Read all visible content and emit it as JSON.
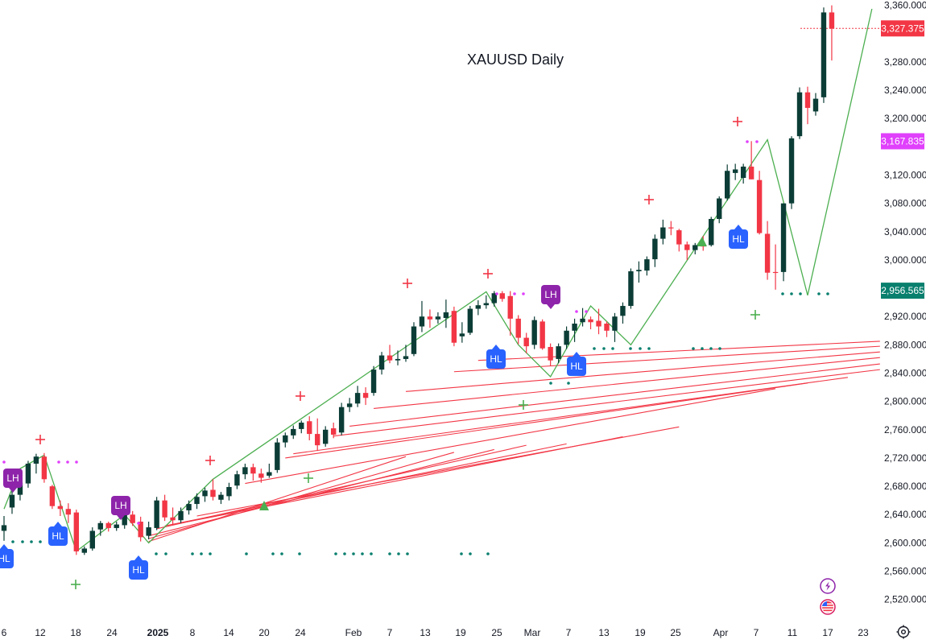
{
  "chart_data": {
    "type": "candlestick",
    "title": "XAUUSD Daily",
    "x_tick_labels": [
      "6",
      "12",
      "18",
      "24",
      "2025",
      "8",
      "14",
      "20",
      "24",
      "Feb",
      "7",
      "13",
      "19",
      "25",
      "Mar",
      "7",
      "13",
      "19",
      "25",
      "Apr",
      "7",
      "11",
      "17",
      "23"
    ],
    "y_tick_labels": [
      "3,360.000",
      "3,280.000",
      "3,240.000",
      "3,200.000",
      "3,120.000",
      "3,080.000",
      "3,040.000",
      "3,000.000",
      "2,920.000",
      "2,880.000",
      "2,840.000",
      "2,800.000",
      "2,760.000",
      "2,720.000",
      "2,680.000",
      "2,640.000",
      "2,600.000",
      "2,560.000",
      "2,520.000"
    ],
    "y_tick_values": [
      3360,
      3280,
      3240,
      3200,
      3120,
      3080,
      3040,
      3000,
      2920,
      2880,
      2840,
      2800,
      2760,
      2720,
      2680,
      2640,
      2600,
      2560,
      2520
    ],
    "ylim": [
      2498,
      3363
    ],
    "price_labels": [
      {
        "text": "3,327.375",
        "value": 3327.375,
        "color": "#f23645"
      },
      {
        "text": "3,167.835",
        "value": 3167.835,
        "color": "#e040fb"
      },
      {
        "text": "2,956.565",
        "value": 2956.565,
        "color": "#097f6e"
      }
    ],
    "candles": [
      {
        "o": 2617,
        "h": 2638,
        "l": 2603,
        "c": 2625
      },
      {
        "o": 2650,
        "h": 2675,
        "l": 2641,
        "c": 2668
      },
      {
        "o": 2668,
        "h": 2692,
        "l": 2660,
        "c": 2685
      },
      {
        "o": 2684,
        "h": 2716,
        "l": 2678,
        "c": 2712
      },
      {
        "o": 2712,
        "h": 2726,
        "l": 2698,
        "c": 2722
      },
      {
        "o": 2722,
        "h": 2727,
        "l": 2685,
        "c": 2690
      },
      {
        "o": 2680,
        "h": 2682,
        "l": 2648,
        "c": 2652
      },
      {
        "o": 2652,
        "h": 2660,
        "l": 2638,
        "c": 2648
      },
      {
        "o": 2648,
        "h": 2656,
        "l": 2628,
        "c": 2640
      },
      {
        "o": 2643,
        "h": 2647,
        "l": 2583,
        "c": 2588
      },
      {
        "o": 2586,
        "h": 2595,
        "l": 2583,
        "c": 2592
      },
      {
        "o": 2592,
        "h": 2622,
        "l": 2589,
        "c": 2617
      },
      {
        "o": 2619,
        "h": 2631,
        "l": 2610,
        "c": 2628
      },
      {
        "o": 2628,
        "h": 2630,
        "l": 2616,
        "c": 2621
      },
      {
        "o": 2621,
        "h": 2630,
        "l": 2617,
        "c": 2626
      },
      {
        "o": 2625,
        "h": 2645,
        "l": 2620,
        "c": 2640
      },
      {
        "o": 2640,
        "h": 2645,
        "l": 2624,
        "c": 2628
      },
      {
        "o": 2630,
        "h": 2637,
        "l": 2602,
        "c": 2608
      },
      {
        "o": 2610,
        "h": 2630,
        "l": 2605,
        "c": 2622
      },
      {
        "o": 2621,
        "h": 2665,
        "l": 2618,
        "c": 2660
      },
      {
        "o": 2660,
        "h": 2668,
        "l": 2631,
        "c": 2636
      },
      {
        "o": 2636,
        "h": 2650,
        "l": 2625,
        "c": 2632
      },
      {
        "o": 2632,
        "h": 2650,
        "l": 2628,
        "c": 2645
      },
      {
        "o": 2646,
        "h": 2660,
        "l": 2640,
        "c": 2655
      },
      {
        "o": 2655,
        "h": 2670,
        "l": 2648,
        "c": 2665
      },
      {
        "o": 2666,
        "h": 2678,
        "l": 2658,
        "c": 2674
      },
      {
        "o": 2675,
        "h": 2690,
        "l": 2660,
        "c": 2665
      },
      {
        "o": 2661,
        "h": 2672,
        "l": 2655,
        "c": 2668
      },
      {
        "o": 2666,
        "h": 2685,
        "l": 2660,
        "c": 2679
      },
      {
        "o": 2681,
        "h": 2702,
        "l": 2676,
        "c": 2697
      },
      {
        "o": 2697,
        "h": 2712,
        "l": 2690,
        "c": 2707
      },
      {
        "o": 2707,
        "h": 2712,
        "l": 2688,
        "c": 2698
      },
      {
        "o": 2698,
        "h": 2705,
        "l": 2685,
        "c": 2692
      },
      {
        "o": 2695,
        "h": 2712,
        "l": 2692,
        "c": 2700
      },
      {
        "o": 2703,
        "h": 2748,
        "l": 2699,
        "c": 2742
      },
      {
        "o": 2742,
        "h": 2756,
        "l": 2735,
        "c": 2752
      },
      {
        "o": 2752,
        "h": 2766,
        "l": 2747,
        "c": 2761
      },
      {
        "o": 2761,
        "h": 2773,
        "l": 2755,
        "c": 2770
      },
      {
        "o": 2772,
        "h": 2779,
        "l": 2745,
        "c": 2754
      },
      {
        "o": 2754,
        "h": 2776,
        "l": 2730,
        "c": 2738
      },
      {
        "o": 2740,
        "h": 2765,
        "l": 2736,
        "c": 2760
      },
      {
        "o": 2762,
        "h": 2770,
        "l": 2748,
        "c": 2753
      },
      {
        "o": 2756,
        "h": 2798,
        "l": 2752,
        "c": 2792
      },
      {
        "o": 2792,
        "h": 2805,
        "l": 2785,
        "c": 2797
      },
      {
        "o": 2797,
        "h": 2822,
        "l": 2792,
        "c": 2812
      },
      {
        "o": 2812,
        "h": 2820,
        "l": 2795,
        "c": 2805
      },
      {
        "o": 2812,
        "h": 2850,
        "l": 2808,
        "c": 2845
      },
      {
        "o": 2845,
        "h": 2870,
        "l": 2838,
        "c": 2865
      },
      {
        "o": 2865,
        "h": 2880,
        "l": 2854,
        "c": 2858
      },
      {
        "o": 2858,
        "h": 2872,
        "l": 2851,
        "c": 2860
      },
      {
        "o": 2860,
        "h": 2880,
        "l": 2856,
        "c": 2864
      },
      {
        "o": 2867,
        "h": 2912,
        "l": 2864,
        "c": 2906
      },
      {
        "o": 2906,
        "h": 2942,
        "l": 2898,
        "c": 2920
      },
      {
        "o": 2920,
        "h": 2930,
        "l": 2904,
        "c": 2916
      },
      {
        "o": 2916,
        "h": 2926,
        "l": 2910,
        "c": 2920
      },
      {
        "o": 2918,
        "h": 2944,
        "l": 2904,
        "c": 2926
      },
      {
        "o": 2928,
        "h": 2934,
        "l": 2878,
        "c": 2883
      },
      {
        "o": 2892,
        "h": 2912,
        "l": 2883,
        "c": 2896
      },
      {
        "o": 2897,
        "h": 2935,
        "l": 2894,
        "c": 2931
      },
      {
        "o": 2931,
        "h": 2943,
        "l": 2922,
        "c": 2936
      },
      {
        "o": 2936,
        "h": 2950,
        "l": 2931,
        "c": 2939
      },
      {
        "o": 2939,
        "h": 2956,
        "l": 2934,
        "c": 2953
      },
      {
        "o": 2953,
        "h": 2956,
        "l": 2941,
        "c": 2945
      },
      {
        "o": 2949,
        "h": 2956,
        "l": 2893,
        "c": 2917
      },
      {
        "o": 2917,
        "h": 2922,
        "l": 2881,
        "c": 2890
      },
      {
        "o": 2890,
        "h": 2897,
        "l": 2868,
        "c": 2878
      },
      {
        "o": 2880,
        "h": 2920,
        "l": 2874,
        "c": 2915
      },
      {
        "o": 2913,
        "h": 2916,
        "l": 2873,
        "c": 2875
      },
      {
        "o": 2877,
        "h": 2882,
        "l": 2850,
        "c": 2858
      },
      {
        "o": 2860,
        "h": 2882,
        "l": 2854,
        "c": 2878
      },
      {
        "o": 2880,
        "h": 2906,
        "l": 2874,
        "c": 2900
      },
      {
        "o": 2900,
        "h": 2917,
        "l": 2884,
        "c": 2910
      },
      {
        "o": 2912,
        "h": 2932,
        "l": 2906,
        "c": 2917
      },
      {
        "o": 2916,
        "h": 2920,
        "l": 2902,
        "c": 2912
      },
      {
        "o": 2914,
        "h": 2931,
        "l": 2895,
        "c": 2906
      },
      {
        "o": 2910,
        "h": 2913,
        "l": 2891,
        "c": 2900
      },
      {
        "o": 2900,
        "h": 2925,
        "l": 2884,
        "c": 2920
      },
      {
        "o": 2921,
        "h": 2940,
        "l": 2910,
        "c": 2935
      },
      {
        "o": 2935,
        "h": 2988,
        "l": 2931,
        "c": 2984
      },
      {
        "o": 2984,
        "h": 2998,
        "l": 2968,
        "c": 2986
      },
      {
        "o": 2985,
        "h": 3005,
        "l": 2978,
        "c": 3001
      },
      {
        "o": 3001,
        "h": 3036,
        "l": 2990,
        "c": 3030
      },
      {
        "o": 3030,
        "h": 3057,
        "l": 3022,
        "c": 3046
      },
      {
        "o": 3046,
        "h": 3055,
        "l": 3035,
        "c": 3045
      },
      {
        "o": 3042,
        "h": 3044,
        "l": 3012,
        "c": 3022
      },
      {
        "o": 3022,
        "h": 3026,
        "l": 3000,
        "c": 3014
      },
      {
        "o": 3014,
        "h": 3024,
        "l": 3008,
        "c": 3021
      },
      {
        "o": 3021,
        "h": 3034,
        "l": 3013,
        "c": 3019
      },
      {
        "o": 3021,
        "h": 3061,
        "l": 3019,
        "c": 3058
      },
      {
        "o": 3058,
        "h": 3090,
        "l": 3052,
        "c": 3087
      },
      {
        "o": 3087,
        "h": 3135,
        "l": 3084,
        "c": 3126
      },
      {
        "o": 3123,
        "h": 3136,
        "l": 3113,
        "c": 3128
      },
      {
        "o": 3116,
        "h": 3136,
        "l": 3108,
        "c": 3132
      },
      {
        "o": 3132,
        "h": 3168,
        "l": 3114,
        "c": 3114
      },
      {
        "o": 3113,
        "h": 3126,
        "l": 3036,
        "c": 3038
      },
      {
        "o": 3037,
        "h": 3055,
        "l": 2972,
        "c": 2982
      },
      {
        "o": 2983,
        "h": 3022,
        "l": 2958,
        "c": 2982
      },
      {
        "o": 2983,
        "h": 3080,
        "l": 2970,
        "c": 3080
      },
      {
        "o": 3080,
        "h": 3175,
        "l": 3072,
        "c": 3172
      },
      {
        "o": 3175,
        "h": 3244,
        "l": 3171,
        "c": 3237
      },
      {
        "o": 3237,
        "h": 3245,
        "l": 3192,
        "c": 3215
      },
      {
        "o": 3210,
        "h": 3236,
        "l": 3204,
        "c": 3228
      },
      {
        "o": 3230,
        "h": 3357,
        "l": 3222,
        "c": 3350
      },
      {
        "o": 3350,
        "h": 3360,
        "l": 3282,
        "c": 3327
      }
    ],
    "pattern_labels": [
      {
        "text": "LH",
        "candle": 2,
        "kind": "LH"
      },
      {
        "text": "HL",
        "candle": 0,
        "kind": "HL"
      },
      {
        "text": "HL",
        "candle": 7,
        "kind": "HL"
      },
      {
        "text": "LH",
        "candle": 15,
        "kind": "LH"
      },
      {
        "text": "HL",
        "candle": 18,
        "kind": "HL"
      },
      {
        "text": "HL",
        "candle": 64,
        "kind": "HL"
      },
      {
        "text": "LH",
        "candle": 75,
        "kind": "LH"
      },
      {
        "text": "HL",
        "candle": 78,
        "kind": "HL"
      },
      {
        "text": "HL",
        "candle": 96,
        "kind": "HL"
      }
    ],
    "colors": {
      "up": "#0b3d36",
      "down": "#f23645",
      "trend_line": "#f23645",
      "zigzag": "#4caf50",
      "dot_teal": "#097f6e",
      "dot_magenta": "#e040fb",
      "lh_marker": "#8e24aa",
      "hl_marker": "#2962ff",
      "grid": "#ffffff",
      "axis_text": "#131722"
    }
  },
  "icons": {
    "flash": "flash-icon",
    "flag": "us-flag-icon",
    "settings": "settings-icon"
  }
}
